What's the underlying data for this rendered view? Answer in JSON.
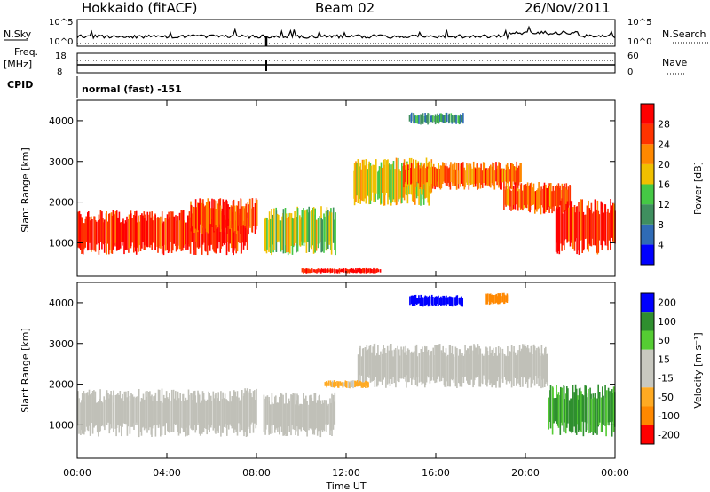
{
  "header": {
    "station": "Hokkaido (fitACF)",
    "beam": "Beam 02",
    "date": "26/Nov/2011"
  },
  "strip_labels": {
    "nsky": "N.Sky",
    "nsearch": "N.Search",
    "freq_line1": "Freq.",
    "freq_line2": "[MHz]",
    "nave": "Nave",
    "cpid": "CPID",
    "cpid_value": "normal (fast) -151",
    "noise_ticks_left": [
      "10^5",
      "10^0"
    ],
    "noise_ticks_right": [
      "10^5",
      "10^0"
    ],
    "freq_ticks_left": [
      "18",
      "8"
    ],
    "freq_ticks_right": [
      "60",
      "0"
    ]
  },
  "colors": {
    "power": [
      "#0000ff",
      "#2f6bb6",
      "#3f8f5f",
      "#45c845",
      "#f0c000",
      "#ff8800",
      "#ff3300",
      "#ff0000"
    ],
    "velocity": [
      "#ff0000",
      "#ff8800",
      "#ffaa22",
      "#c8c8c0",
      "#c8c8c0",
      "#55cc33",
      "#2f8f2f",
      "#0000ff"
    ],
    "ground_scatter": "#c0c0b8"
  },
  "chart_data": [
    {
      "type": "heatmap",
      "title": "Power",
      "ylabel": "Slant Range [km]",
      "xlabel": "",
      "x_ticks": [
        "00:00",
        "04:00",
        "08:00",
        "12:00",
        "16:00",
        "20:00",
        "00:00"
      ],
      "xlim_hours": [
        0,
        24
      ],
      "y_ticks": [
        1000,
        2000,
        3000,
        4000
      ],
      "ylim": [
        180,
        4500
      ],
      "colorbar": {
        "label": "Power [dB]",
        "ticks": [
          "4",
          "8",
          "12",
          "16",
          "20",
          "24",
          "28"
        ],
        "range": [
          0,
          30
        ]
      },
      "scatter_regions": [
        {
          "t_start": 0.0,
          "t_end": 7.6,
          "r_low": 700,
          "r_high": 1800,
          "power": 28
        },
        {
          "t_start": 5.0,
          "t_end": 8.0,
          "r_low": 1200,
          "r_high": 2100,
          "power": 26
        },
        {
          "t_start": 8.3,
          "t_end": 11.5,
          "r_low": 700,
          "r_high": 1900,
          "power": 16
        },
        {
          "t_start": 12.3,
          "t_end": 15.8,
          "r_low": 1900,
          "r_high": 3100,
          "power": 18
        },
        {
          "t_start": 14.5,
          "t_end": 19.8,
          "r_low": 2300,
          "r_high": 3000,
          "power": 24
        },
        {
          "t_start": 19.0,
          "t_end": 22.0,
          "r_low": 1700,
          "r_high": 2500,
          "power": 24
        },
        {
          "t_start": 21.3,
          "t_end": 24.0,
          "r_low": 700,
          "r_high": 2100,
          "power": 28
        },
        {
          "t_start": 10.0,
          "t_end": 13.5,
          "r_low": 250,
          "r_high": 380,
          "power": 29
        },
        {
          "t_start": 14.8,
          "t_end": 17.2,
          "r_low": 3900,
          "r_high": 4200,
          "power": 10
        }
      ]
    },
    {
      "type": "heatmap",
      "title": "Velocity",
      "ylabel": "Slant Range [km]",
      "xlabel": "Time UT",
      "x_ticks": [
        "00:00",
        "04:00",
        "08:00",
        "12:00",
        "16:00",
        "20:00",
        "00:00"
      ],
      "xlim_hours": [
        0,
        24
      ],
      "y_ticks": [
        1000,
        2000,
        3000,
        4000
      ],
      "ylim": [
        180,
        4500
      ],
      "colorbar": {
        "label": "Velocity [m s⁻¹]",
        "ticks": [
          "200",
          "100",
          "50",
          "15",
          "-15",
          "-50",
          "-100",
          "-200"
        ],
        "range": [
          -250,
          250
        ]
      },
      "scatter_regions": [
        {
          "t_start": 0.0,
          "t_end": 8.0,
          "r_low": 700,
          "r_high": 1900,
          "velocity": 0,
          "ground": true
        },
        {
          "t_start": 8.3,
          "t_end": 11.5,
          "r_low": 700,
          "r_high": 1800,
          "velocity": 0,
          "ground": true
        },
        {
          "t_start": 12.5,
          "t_end": 21.0,
          "r_low": 1900,
          "r_high": 3000,
          "velocity": 0,
          "ground": true
        },
        {
          "t_start": 21.0,
          "t_end": 24.0,
          "r_low": 700,
          "r_high": 2000,
          "velocity": 60,
          "ground": false
        },
        {
          "t_start": 14.8,
          "t_end": 17.2,
          "r_low": 3900,
          "r_high": 4200,
          "velocity": 200,
          "ground": false
        },
        {
          "t_start": 18.2,
          "t_end": 19.2,
          "r_low": 3950,
          "r_high": 4250,
          "velocity": -120,
          "ground": false
        },
        {
          "t_start": 11.0,
          "t_end": 13.0,
          "r_low": 1900,
          "r_high": 2100,
          "velocity": -60,
          "ground": false
        }
      ]
    }
  ]
}
